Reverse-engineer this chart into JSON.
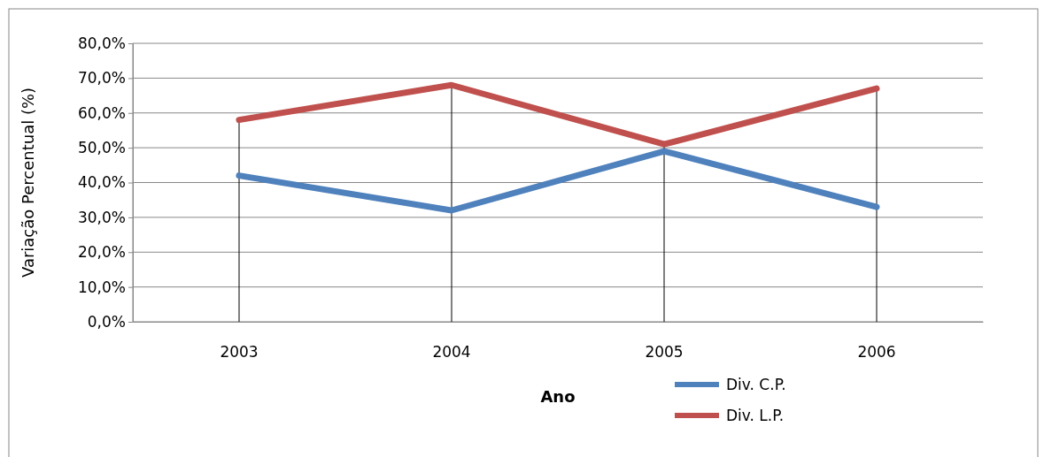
{
  "chart_data": {
    "type": "line",
    "xlabel": "Ano",
    "ylabel": "Variação Percentual (%)",
    "categories": [
      "2003",
      "2004",
      "2005",
      "2006"
    ],
    "series": [
      {
        "name": "Div. C.P.",
        "color": "#4f81bd",
        "values": [
          42,
          32,
          49,
          33
        ]
      },
      {
        "name": "Div. L.P.",
        "color": "#c0504d",
        "values": [
          58,
          68,
          51,
          67
        ]
      }
    ],
    "ylim": [
      0,
      80
    ],
    "yticks": [
      {
        "value": 0,
        "label": "0,0%"
      },
      {
        "value": 10,
        "label": "10,0%"
      },
      {
        "value": 20,
        "label": "20,0%"
      },
      {
        "value": 30,
        "label": "30,0%"
      },
      {
        "value": 40,
        "label": "40,0%"
      },
      {
        "value": 50,
        "label": "50,0%"
      },
      {
        "value": 60,
        "label": "60,0%"
      },
      {
        "value": 70,
        "label": "70,0%"
      },
      {
        "value": 80,
        "label": "80,0%"
      }
    ],
    "ref_lines": [
      {
        "axis": "x",
        "value": "2003",
        "color": "#000000"
      },
      {
        "axis": "x",
        "value": "2004",
        "color": "#000000"
      },
      {
        "axis": "x",
        "value": "2005",
        "color": "#000000"
      },
      {
        "axis": "x",
        "value": "2006",
        "color": "#000000"
      }
    ],
    "grid": "y",
    "legend": "bottom right",
    "marker": "none",
    "line_style": "solid"
  }
}
